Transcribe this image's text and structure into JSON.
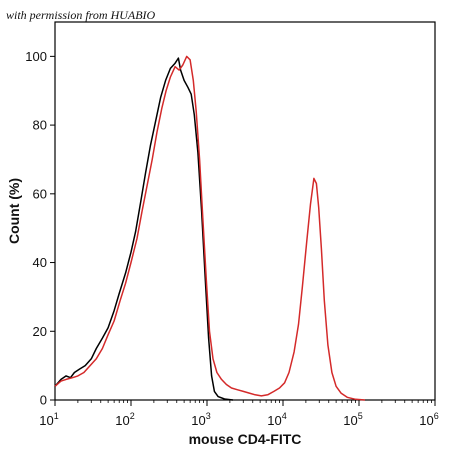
{
  "watermark": "with permission from HUABIO",
  "chart_data": {
    "type": "line",
    "title": "",
    "xlabel": "mouse CD4-FITC",
    "ylabel": "Count (%)",
    "xscale": "log",
    "xlim": [
      10,
      1000000
    ],
    "ylim": [
      0,
      110
    ],
    "x_ticks": [
      {
        "value": 10,
        "base": "10",
        "exp": "1"
      },
      {
        "value": 100,
        "base": "10",
        "exp": "2"
      },
      {
        "value": 1000,
        "base": "10",
        "exp": "3"
      },
      {
        "value": 10000,
        "base": "10",
        "exp": "4"
      },
      {
        "value": 100000,
        "base": "10",
        "exp": "5"
      },
      {
        "value": 1000000,
        "base": "10",
        "exp": "6"
      }
    ],
    "y_ticks": [
      0,
      20,
      40,
      60,
      80,
      100
    ],
    "grid": false,
    "legend": "none",
    "series": [
      {
        "color": "#000000",
        "points": [
          [
            10,
            4
          ],
          [
            12,
            6
          ],
          [
            14,
            7
          ],
          [
            16,
            6.5
          ],
          [
            18,
            8
          ],
          [
            21,
            9
          ],
          [
            25,
            10
          ],
          [
            30,
            12
          ],
          [
            35,
            15
          ],
          [
            42,
            18
          ],
          [
            50,
            21
          ],
          [
            60,
            26
          ],
          [
            70,
            31
          ],
          [
            85,
            37
          ],
          [
            100,
            43
          ],
          [
            115,
            49
          ],
          [
            135,
            58
          ],
          [
            155,
            66
          ],
          [
            180,
            74
          ],
          [
            210,
            81
          ],
          [
            245,
            88
          ],
          [
            285,
            93
          ],
          [
            330,
            96.5
          ],
          [
            380,
            98
          ],
          [
            420,
            99.5
          ],
          [
            450,
            96
          ],
          [
            500,
            93
          ],
          [
            560,
            91
          ],
          [
            620,
            89
          ],
          [
            680,
            83
          ],
          [
            760,
            72
          ],
          [
            850,
            55
          ],
          [
            950,
            35
          ],
          [
            1050,
            18
          ],
          [
            1150,
            7
          ],
          [
            1250,
            2.5
          ],
          [
            1400,
            1
          ],
          [
            1700,
            0.3
          ],
          [
            2200,
            0
          ]
        ]
      },
      {
        "color": "#d42a2a",
        "points": [
          [
            10,
            4
          ],
          [
            12,
            5.5
          ],
          [
            14,
            6
          ],
          [
            17,
            6.5
          ],
          [
            20,
            7
          ],
          [
            24,
            8
          ],
          [
            29,
            10
          ],
          [
            35,
            12
          ],
          [
            42,
            15
          ],
          [
            50,
            19
          ],
          [
            60,
            23
          ],
          [
            72,
            29
          ],
          [
            85,
            34
          ],
          [
            100,
            40
          ],
          [
            120,
            47
          ],
          [
            140,
            55
          ],
          [
            165,
            63
          ],
          [
            190,
            70
          ],
          [
            220,
            78
          ],
          [
            255,
            85
          ],
          [
            290,
            90
          ],
          [
            330,
            94
          ],
          [
            380,
            97
          ],
          [
            430,
            96
          ],
          [
            480,
            97.5
          ],
          [
            540,
            100
          ],
          [
            600,
            99
          ],
          [
            660,
            93
          ],
          [
            720,
            84
          ],
          [
            800,
            70
          ],
          [
            880,
            53
          ],
          [
            980,
            35
          ],
          [
            1080,
            20
          ],
          [
            1200,
            12
          ],
          [
            1350,
            8
          ],
          [
            1550,
            6
          ],
          [
            1800,
            4.5
          ],
          [
            2100,
            3.5
          ],
          [
            2500,
            3
          ],
          [
            3000,
            2.5
          ],
          [
            3600,
            2
          ],
          [
            4300,
            1.5
          ],
          [
            5200,
            1.2
          ],
          [
            6300,
            1.5
          ],
          [
            7600,
            2.5
          ],
          [
            9000,
            3.5
          ],
          [
            10500,
            5
          ],
          [
            12000,
            8
          ],
          [
            14000,
            14
          ],
          [
            16000,
            22
          ],
          [
            18000,
            33
          ],
          [
            20500,
            46
          ],
          [
            23000,
            57
          ],
          [
            25500,
            64.5
          ],
          [
            27500,
            63
          ],
          [
            29500,
            56
          ],
          [
            32000,
            44
          ],
          [
            35000,
            29
          ],
          [
            39000,
            16
          ],
          [
            44000,
            8
          ],
          [
            50000,
            4
          ],
          [
            58000,
            2
          ],
          [
            70000,
            0.8
          ],
          [
            90000,
            0.2
          ],
          [
            120000,
            0
          ]
        ]
      }
    ]
  }
}
